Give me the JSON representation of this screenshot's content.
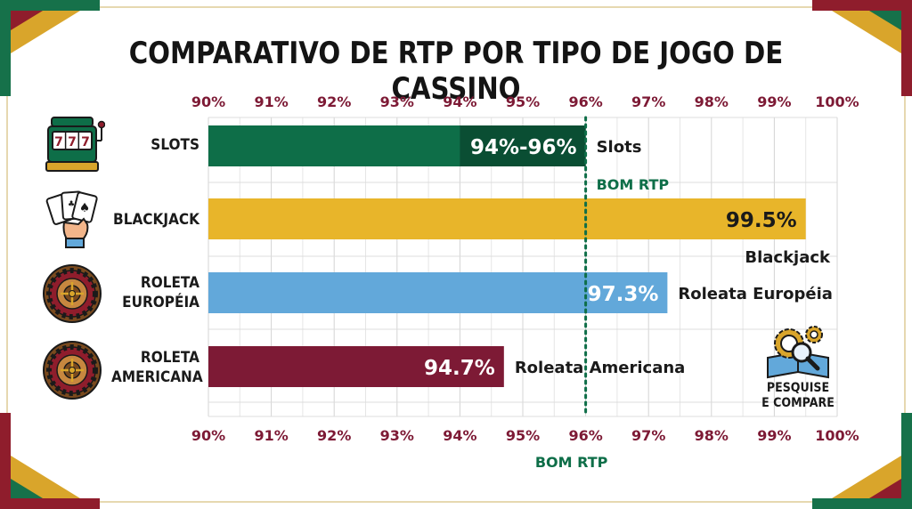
{
  "colors": {
    "green": "#0e6e48",
    "green_dark": "#0a4e33",
    "gold": "#e8b52a",
    "blue": "#62a8da",
    "maroon": "#7d1a35",
    "tick": "#7d1a35",
    "frame_green": "#16714a",
    "frame_red": "#8f1d2c",
    "frame_gold": "#d9a52b"
  },
  "icons": {
    "slots": "slot-machine-icon",
    "blackjack": "playing-cards-hand-icon",
    "roleta_europeia": "roulette-wheel-icon",
    "roleta_americana": "roulette-wheel-icon",
    "pesquise": "gear-magnifier-book-icon"
  },
  "pesquise": {
    "line1": "PESQUISE",
    "line2": "E COMPARE"
  },
  "chart_data": {
    "type": "bar",
    "orientation": "horizontal",
    "title": "COMPARATIVO DE RTP POR TIPO DE JOGO DE CASSINO",
    "xlim": [
      90,
      100
    ],
    "ticks": [
      "90%",
      "91%",
      "92%",
      "93%",
      "94%",
      "95%",
      "96%",
      "97%",
      "98%",
      "99%",
      "100%"
    ],
    "grid": true,
    "categories": [
      {
        "key": "slots",
        "label_lines": [
          "SLOTS"
        ],
        "value_low": 94,
        "value": 96,
        "value_label": "94%-96%",
        "side_label": "Slots",
        "color_key": "green"
      },
      {
        "key": "blackjack",
        "label_lines": [
          "BLACKJACK"
        ],
        "value": 99.5,
        "value_label": "99.5%",
        "side_label": "Blackjack",
        "color_key": "gold"
      },
      {
        "key": "roleta_europeia",
        "label_lines": [
          "ROLETA",
          "EUROPÉIA"
        ],
        "value": 97.3,
        "value_label": "97.3%",
        "side_label": "Roleata Européia",
        "color_key": "blue"
      },
      {
        "key": "roleta_americana",
        "label_lines": [
          "ROLETA",
          "AMERICANA"
        ],
        "value": 94.7,
        "value_label": "94.7%",
        "side_label": "Roleata Americana",
        "color_key": "maroon"
      }
    ],
    "reference_line": {
      "value": 96,
      "label_top": "BOM RTP",
      "label_bottom": "BOM RTP"
    }
  }
}
